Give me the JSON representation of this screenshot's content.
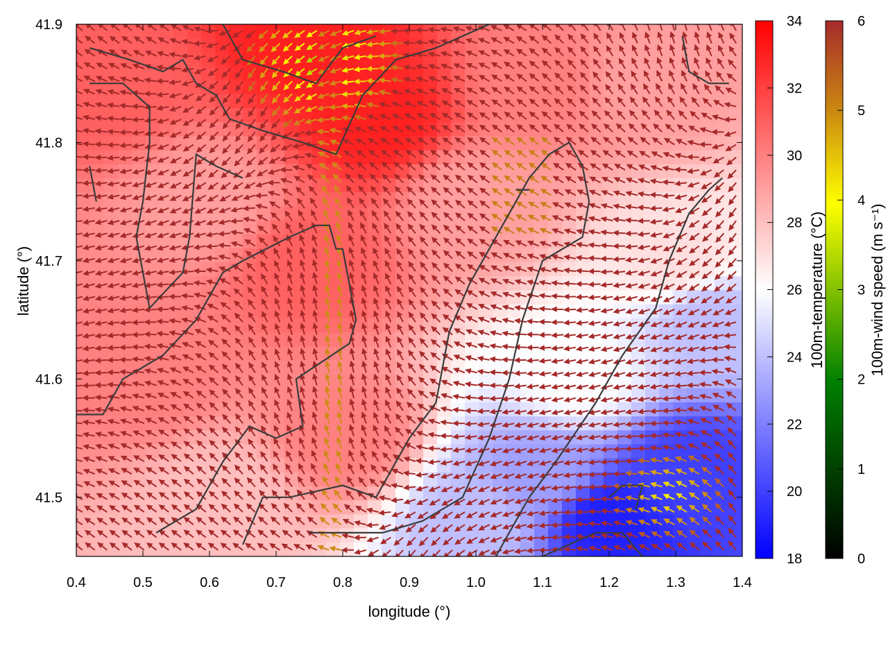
{
  "chart_data": {
    "type": "heatmap",
    "title": "",
    "xlabel": "longitude (°)",
    "ylabel": "latitude (°)",
    "xlim": [
      0.4,
      1.4
    ],
    "ylim": [
      41.45,
      41.9
    ],
    "x_ticks": [
      "0.4",
      "0.5",
      "0.6",
      "0.7",
      "0.8",
      "0.9",
      "1.0",
      "1.1",
      "1.2",
      "1.3",
      "1.4"
    ],
    "y_ticks": [
      "41.5",
      "41.6",
      "41.7",
      "41.8",
      "41.9"
    ],
    "grid": false,
    "layers": {
      "background": "100m-temperature (°C) field",
      "vectors": "100m wind arrows coloured by 100m-wind speed",
      "contours": "dark grey terrain contour lines"
    },
    "temperature_colorbar": {
      "label": "100m-temperature (°C)",
      "range": [
        18,
        34
      ],
      "tick_labels": [
        "18",
        "20",
        "22",
        "24",
        "26",
        "28",
        "30",
        "32",
        "34"
      ],
      "colors": [
        "#0000ff",
        "#ffffff",
        "#ff0000"
      ]
    },
    "wind_colorbar": {
      "label": "100m-wind speed (m s⁻¹)",
      "range": [
        0,
        6
      ],
      "tick_labels": [
        "0",
        "1",
        "2",
        "3",
        "4",
        "5",
        "6"
      ],
      "colors": [
        "#000000",
        "#008000",
        "#ffff00",
        "#a52a2a"
      ]
    },
    "temperature_regions": [
      {
        "lon": 0.45,
        "lat": 41.85,
        "temp": 31
      },
      {
        "lon": 0.75,
        "lat": 41.88,
        "temp": 33
      },
      {
        "lon": 0.85,
        "lat": 41.82,
        "temp": 33
      },
      {
        "lon": 0.75,
        "lat": 41.7,
        "temp": 31
      },
      {
        "lon": 0.6,
        "lat": 41.75,
        "temp": 29
      },
      {
        "lon": 0.5,
        "lat": 41.6,
        "temp": 30
      },
      {
        "lon": 0.62,
        "lat": 41.5,
        "temp": 28
      },
      {
        "lon": 0.8,
        "lat": 41.55,
        "temp": 30
      },
      {
        "lon": 1.0,
        "lat": 41.75,
        "temp": 29
      },
      {
        "lon": 1.1,
        "lat": 41.85,
        "temp": 30
      },
      {
        "lon": 1.25,
        "lat": 41.85,
        "temp": 29
      },
      {
        "lon": 1.3,
        "lat": 41.7,
        "temp": 27
      },
      {
        "lon": 1.35,
        "lat": 41.65,
        "temp": 24
      },
      {
        "lon": 1.15,
        "lat": 41.6,
        "temp": 26
      },
      {
        "lon": 1.1,
        "lat": 41.52,
        "temp": 23
      },
      {
        "lon": 1.2,
        "lat": 41.48,
        "temp": 19
      },
      {
        "lon": 1.32,
        "lat": 41.52,
        "temp": 20
      },
      {
        "lon": 1.0,
        "lat": 41.48,
        "temp": 24
      }
    ],
    "contours": [
      [
        [
          0.42,
          41.88
        ],
        [
          0.48,
          41.87
        ],
        [
          0.53,
          41.86
        ],
        [
          0.56,
          41.87
        ],
        [
          0.58,
          41.85
        ],
        [
          0.61,
          41.84
        ],
        [
          0.63,
          41.82
        ],
        [
          0.68,
          41.81
        ],
        [
          0.74,
          41.8
        ],
        [
          0.79,
          41.79
        ],
        [
          0.83,
          41.84
        ],
        [
          0.88,
          41.87
        ],
        [
          0.94,
          41.88
        ],
        [
          0.98,
          41.89
        ],
        [
          1.02,
          41.9
        ]
      ],
      [
        [
          0.42,
          41.85
        ],
        [
          0.47,
          41.85
        ],
        [
          0.51,
          41.83
        ],
        [
          0.51,
          41.8
        ],
        [
          0.5,
          41.75
        ],
        [
          0.49,
          41.72
        ],
        [
          0.51,
          41.66
        ],
        [
          0.56,
          41.69
        ],
        [
          0.57,
          41.72
        ],
        [
          0.58,
          41.79
        ],
        [
          0.61,
          41.78
        ],
        [
          0.65,
          41.77
        ]
      ],
      [
        [
          0.43,
          41.75
        ],
        [
          0.42,
          41.78
        ]
      ],
      [
        [
          0.4,
          41.57
        ],
        [
          0.44,
          41.57
        ],
        [
          0.47,
          41.6
        ],
        [
          0.53,
          41.62
        ],
        [
          0.58,
          41.65
        ],
        [
          0.62,
          41.69
        ],
        [
          0.65,
          41.7
        ],
        [
          0.72,
          41.72
        ],
        [
          0.76,
          41.73
        ],
        [
          0.78,
          41.73
        ],
        [
          0.79,
          41.71
        ],
        [
          0.8,
          41.71
        ],
        [
          0.82,
          41.65
        ],
        [
          0.81,
          41.63
        ],
        [
          0.73,
          41.6
        ],
        [
          0.74,
          41.56
        ],
        [
          0.7,
          41.55
        ],
        [
          0.66,
          41.56
        ],
        [
          0.62,
          41.53
        ],
        [
          0.6,
          41.51
        ],
        [
          0.58,
          41.49
        ],
        [
          0.52,
          41.47
        ]
      ],
      [
        [
          0.65,
          41.46
        ],
        [
          0.68,
          41.5
        ],
        [
          0.72,
          41.5
        ],
        [
          0.8,
          41.51
        ],
        [
          0.85,
          41.5
        ],
        [
          0.9,
          41.55
        ],
        [
          0.94,
          41.58
        ],
        [
          0.96,
          41.64
        ],
        [
          0.99,
          41.68
        ],
        [
          1.01,
          41.7
        ],
        [
          1.03,
          41.72
        ],
        [
          1.05,
          41.74
        ],
        [
          1.08,
          41.77
        ],
        [
          1.11,
          41.79
        ],
        [
          1.14,
          41.8
        ],
        [
          1.16,
          41.78
        ],
        [
          1.17,
          41.75
        ],
        [
          1.16,
          41.72
        ],
        [
          1.1,
          41.7
        ],
        [
          1.07,
          41.65
        ],
        [
          1.05,
          41.6
        ],
        [
          1.02,
          41.55
        ],
        [
          0.98,
          41.5
        ],
        [
          0.92,
          41.48
        ],
        [
          0.86,
          41.47
        ],
        [
          0.8,
          41.47
        ],
        [
          0.75,
          41.47
        ]
      ],
      [
        [
          1.06,
          41.76
        ],
        [
          1.08,
          41.76
        ],
        [
          1.06,
          41.76
        ]
      ],
      [
        [
          1.03,
          41.45
        ],
        [
          1.08,
          41.5
        ],
        [
          1.12,
          41.53
        ],
        [
          1.18,
          41.58
        ],
        [
          1.22,
          41.62
        ],
        [
          1.27,
          41.66
        ],
        [
          1.29,
          41.7
        ],
        [
          1.32,
          41.74
        ],
        [
          1.35,
          41.76
        ],
        [
          1.37,
          41.77
        ]
      ],
      [
        [
          1.1,
          41.45
        ],
        [
          1.18,
          41.47
        ],
        [
          1.22,
          41.47
        ],
        [
          1.25,
          41.45
        ]
      ],
      [
        [
          1.2,
          41.5
        ],
        [
          1.22,
          41.51
        ],
        [
          1.25,
          41.51
        ],
        [
          1.24,
          41.49
        ]
      ],
      [
        [
          1.31,
          41.89
        ],
        [
          1.32,
          41.86
        ],
        [
          1.35,
          41.85
        ],
        [
          1.38,
          41.85
        ]
      ],
      [
        [
          0.62,
          41.9
        ],
        [
          0.65,
          41.87
        ],
        [
          0.71,
          41.86
        ],
        [
          0.76,
          41.85
        ],
        [
          0.8,
          41.88
        ],
        [
          0.85,
          41.89
        ]
      ]
    ]
  }
}
